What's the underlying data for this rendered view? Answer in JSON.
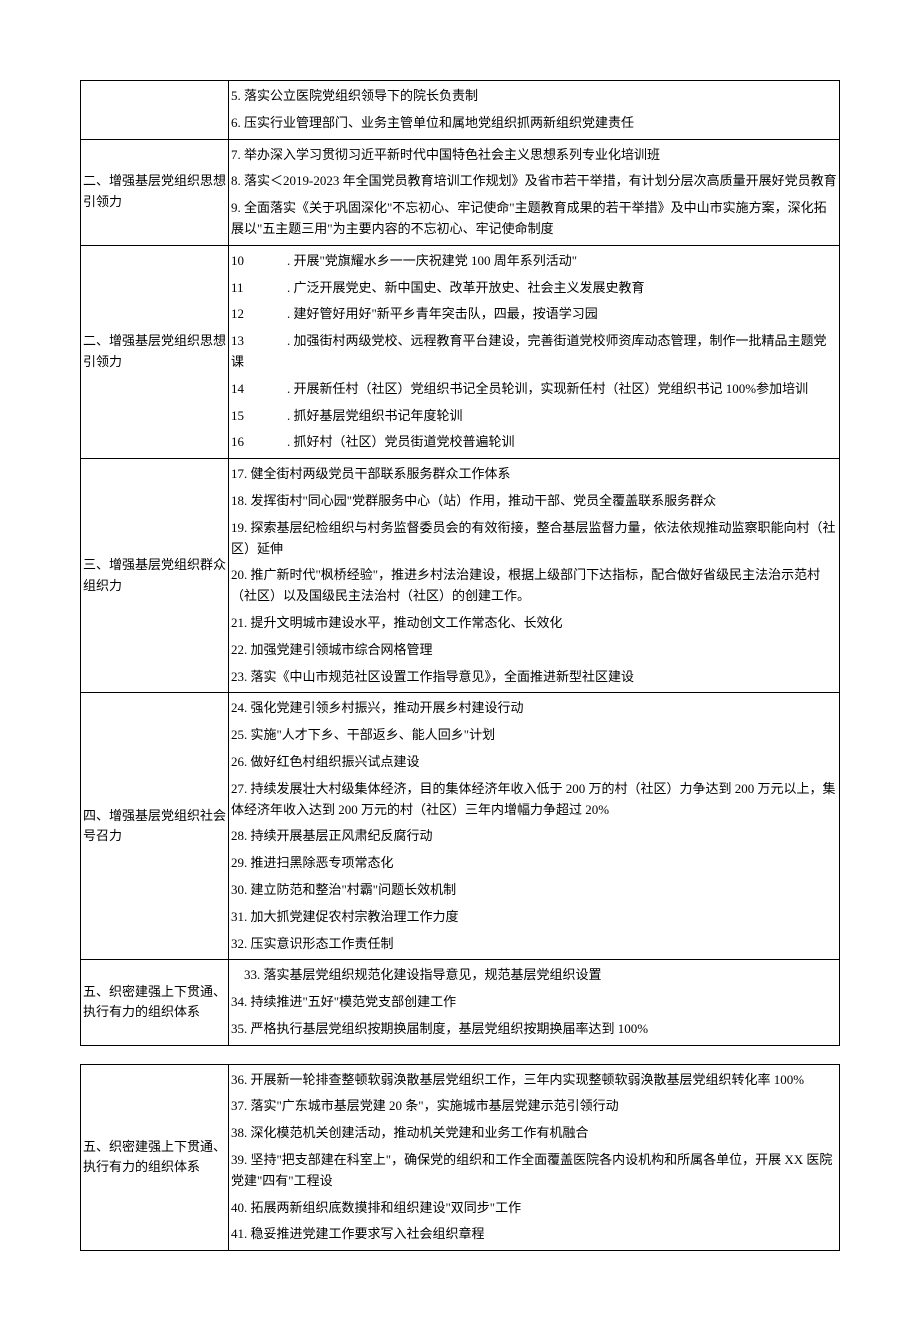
{
  "sections": [
    {
      "label": "",
      "items": [
        "5. 落实公立医院党组织领导下的院长负责制",
        "6. 压实行业管理部门、业务主管单位和属地党组织抓两新组织党建责任"
      ]
    },
    {
      "label": "二、增强基层党组织思想引领力",
      "items": [
        "7. 举办深入学习贯彻习近平新时代中国特色社会主义思想系列专业化培训班",
        "8. 落实＜2019-2023 年全国党员教育培训工作规划》及省市若干举措，有计划分层次高质量开展好党员教育",
        "9. 全面落实《关于巩固深化\"不忘初心、牢记使命\"主题教育成果的若干举措》及中山市实施方案，深化拓展以\"五主题三用\"为主要内容的不忘初心、牢记使命制度"
      ]
    },
    {
      "label": "二、增强基层党组织思想引领力",
      "numbered_items": [
        {
          "n": "10",
          "t": ". 开展\"党旗耀水乡一一庆祝建党 100 周年系列活动\""
        },
        {
          "n": "11",
          "t": ". 广泛开展党史、新中国史、改革开放史、社会主义发展史教育"
        },
        {
          "n": "12",
          "t": ". 建好管好用好\"新平乡青年突击队，四最，按语学习园"
        },
        {
          "n": "13",
          "t": ". 加强街村两级党校、远程教育平台建设，完善街道党校师资库动态管理，制作一批精品主题党课"
        },
        {
          "n": "14",
          "t": ". 开展新任村（社区）党组织书记全员轮训，实现新任村（社区）党组织书记 100%参加培训"
        },
        {
          "n": "15",
          "t": ". 抓好基层党组织书记年度轮训"
        },
        {
          "n": "16",
          "t": ". 抓好村（社区）党员街道党校普遍轮训"
        }
      ]
    },
    {
      "label": "三、增强基层党组织群众组织力",
      "items": [
        "17. 健全街村两级党员干部联系服务群众工作体系",
        "18. 发挥街村\"同心园\"党群服务中心（站）作用，推动干部、党员全覆盖联系服务群众",
        "19. 探索基层纪检组织与村务监督委员会的有效衔接，整合基层监督力量，依法依规推动监察职能向村（社区）延伸",
        "20. 推广新时代\"枫桥经验\"，推进乡村法治建设，根据上级部门下达指标，配合做好省级民主法治示范村（社区）以及国级民主法治村（社区）的创建工作。",
        "21. 提升文明城市建设水平，推动创文工作常态化、长效化",
        "22. 加强党建引领城市综合网格管理",
        "23. 落实《中山市规范社区设置工作指导意见》，全面推进新型社区建设"
      ]
    },
    {
      "label": "四、增强基层党组织社会号召力",
      "items": [
        "24. 强化党建引领乡村振兴，推动开展乡村建设行动",
        "25. 实施\"人才下乡、干部返乡、能人回乡\"计划",
        "26. 做好红色村组织振兴试点建设",
        "27. 持续发展壮大村级集体经济，目的集体经济年收入低于 200 万的村（社区）力争达到 200 万元以上，集体经济年收入达到 200 万元的村（社区）三年内增幅力争超过 20%",
        "28. 持续开展基层正风肃纪反腐行动",
        "29. 推进扫黑除恶专项常态化",
        "30. 建立防范和整治\"村霸\"问题长效机制",
        "31. 加大抓党建促农村宗教治理工作力度",
        "32. 压实意识形态工作责任制"
      ]
    },
    {
      "label": "五、织密建强上下贯通、执行有力的组织体系",
      "items": [
        "　33. 落实基层党组织规范化建设指导意见，规范基层党组织设置",
        "34. 持续推进\"五好\"模范党支部创建工作",
        "35. 严格执行基层党组织按期换届制度，基层党组织按期换届率达到 100%"
      ]
    }
  ],
  "sections2": [
    {
      "label": "五、织密建强上下贯通、执行有力的组织体系",
      "items": [
        "36. 开展新一轮排查整顿软弱涣散基层党组织工作，三年内实现整顿软弱涣散基层党组织转化率 100%",
        "37. 落实\"广东城市基层党建 20 条\"，实施城市基层党建示范引领行动",
        "38. 深化模范机关创建活动，推动机关党建和业务工作有机融合",
        "39. 坚持\"把支部建在科室上\"，确保党的组织和工作全面覆盖医院各内设机构和所属各单位，开展 XX 医院党建\"四有\"工程设",
        "40. 拓展两新组织底数摸排和组织建设\"双同步\"工作",
        "41. 稳妥推进党建工作要求写入社会组织章程"
      ]
    }
  ]
}
